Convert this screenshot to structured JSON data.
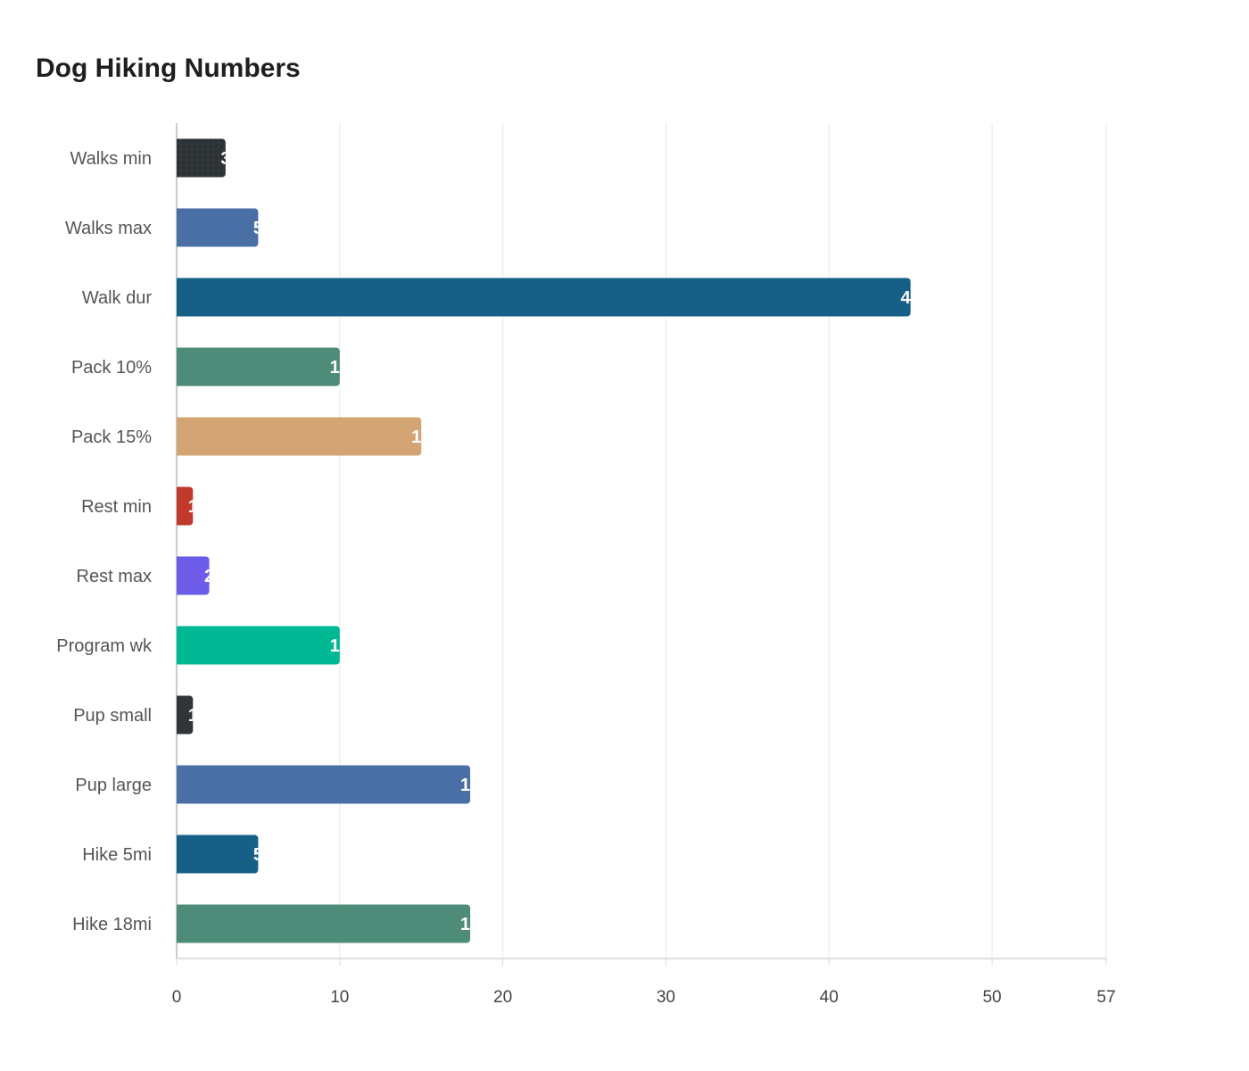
{
  "chart_data": {
    "type": "bar",
    "orientation": "horizontal",
    "title": "Dog Hiking Numbers",
    "categories": [
      "Walks min",
      "Walks max",
      "Walk dur",
      "Pack 10%",
      "Pack 15%",
      "Rest min",
      "Rest max",
      "Program wk",
      "Pup small",
      "Pup large",
      "Hike 5mi",
      "Hike 18mi"
    ],
    "values": [
      3,
      5,
      45,
      10,
      15,
      1,
      2,
      10,
      1,
      18,
      5,
      18
    ],
    "colors": [
      "#2f3538",
      "#4a6fa5",
      "#166088",
      "#4e8b78",
      "#d4a574",
      "#c0392b",
      "#6c5ce7",
      "#00b894",
      "#2f3538",
      "#4a6fa5",
      "#166088",
      "#4e8b78"
    ],
    "xlim": [
      0,
      57
    ],
    "xticks": [
      0,
      10,
      20,
      30,
      40,
      50,
      57
    ],
    "grid": true,
    "data_labels": true
  }
}
